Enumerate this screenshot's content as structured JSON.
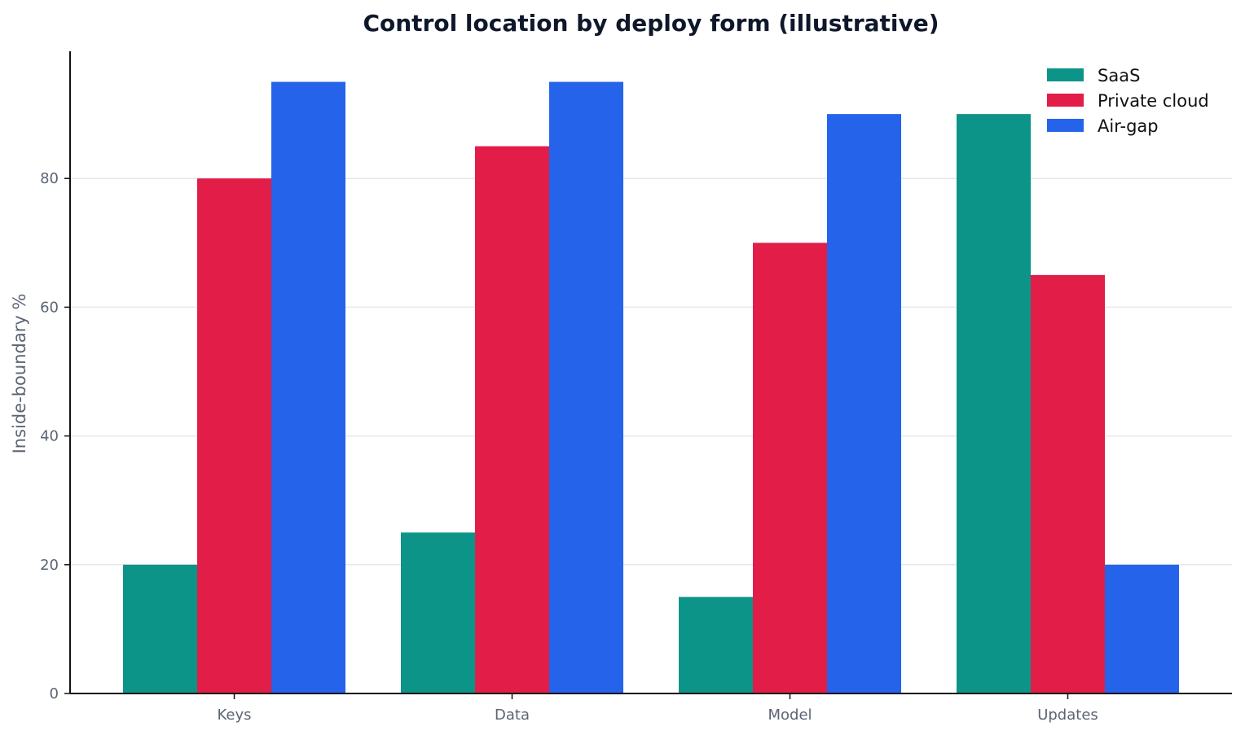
{
  "chart_data": {
    "type": "bar",
    "title": "Control location by deploy form (illustrative)",
    "xlabel": "",
    "ylabel": "Inside-boundary %",
    "categories": [
      "Keys",
      "Data",
      "Model",
      "Updates"
    ],
    "series": [
      {
        "name": "SaaS",
        "color": "#0d9488",
        "values": [
          20,
          25,
          15,
          90
        ]
      },
      {
        "name": "Private cloud",
        "color": "#e11d48",
        "values": [
          80,
          85,
          70,
          65
        ]
      },
      {
        "name": "Air-gap",
        "color": "#2563eb",
        "values": [
          95,
          95,
          90,
          20
        ]
      }
    ],
    "ylim": [
      0,
      99.75
    ],
    "yticks": [
      0,
      20,
      40,
      60,
      80
    ],
    "grid": "horizontal",
    "legend": "top-right"
  }
}
